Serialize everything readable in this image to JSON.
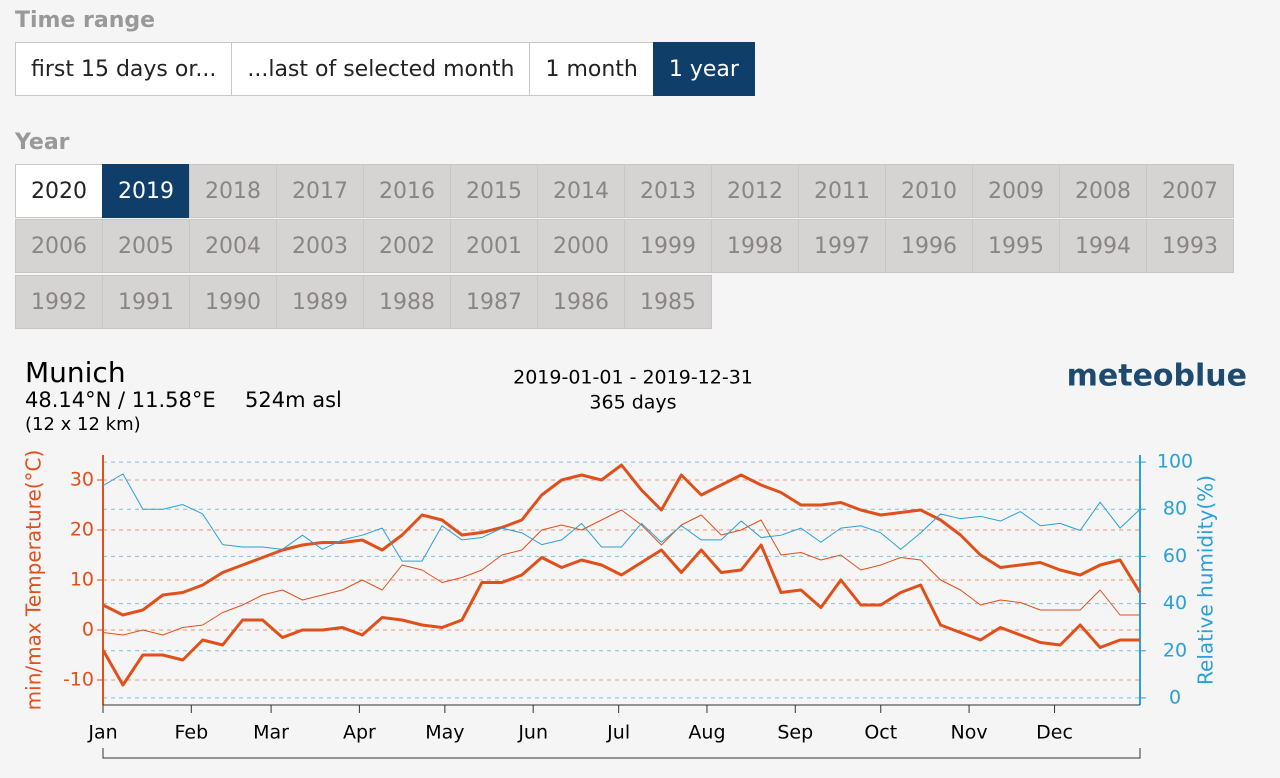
{
  "time_range": {
    "label": "Time range",
    "options": [
      "first 15 days or...",
      "...last of selected month",
      "1 month",
      "1 year"
    ],
    "selected": 3
  },
  "year": {
    "label": "Year",
    "rows": [
      [
        "2020",
        "2019",
        "2018",
        "2017",
        "2016",
        "2015",
        "2014",
        "2013",
        "2012",
        "2011",
        "2010",
        "2009",
        "2008",
        "2007"
      ],
      [
        "2006",
        "2005",
        "2004",
        "2003",
        "2002",
        "2001",
        "2000",
        "1999",
        "1998",
        "1997",
        "1996",
        "1995",
        "1994",
        "1993"
      ],
      [
        "1992",
        "1991",
        "1990",
        "1989",
        "1988",
        "1987",
        "1986",
        "1985"
      ]
    ],
    "selected": "2019",
    "available": [
      "2020",
      "2019"
    ]
  },
  "chart_data": {
    "type": "line",
    "location": "Munich",
    "coordinates": "48.14°N / 11.58°E",
    "elevation": "524m asl",
    "resolution": "(12 x 12 km)",
    "period": "2019-01-01 - 2019-12-31",
    "days": "365 days",
    "brand": "meteoblue",
    "y_label": "min/max Temperature(°C)",
    "y2_label": "Relative humidity(%)",
    "x": [
      0,
      7,
      14,
      21,
      28,
      35,
      42,
      49,
      56,
      63,
      70,
      77,
      84,
      91,
      98,
      105,
      112,
      119,
      126,
      133,
      140,
      147,
      154,
      161,
      168,
      175,
      182,
      189,
      196,
      203,
      210,
      217,
      224,
      231,
      238,
      245,
      252,
      259,
      266,
      273,
      280,
      287,
      294,
      301,
      308,
      315,
      322,
      329,
      336,
      343,
      350,
      357,
      364
    ],
    "xlim": [
      0,
      364
    ],
    "xticks": [
      {
        "value": 0,
        "label": "Jan"
      },
      {
        "value": 31,
        "label": "Feb"
      },
      {
        "value": 59,
        "label": "Mar"
      },
      {
        "value": 90,
        "label": "Apr"
      },
      {
        "value": 120,
        "label": "May"
      },
      {
        "value": 151,
        "label": "Jun"
      },
      {
        "value": 181,
        "label": "Jul"
      },
      {
        "value": 212,
        "label": "Aug"
      },
      {
        "value": 243,
        "label": "Sep"
      },
      {
        "value": 273,
        "label": "Oct"
      },
      {
        "value": 304,
        "label": "Nov"
      },
      {
        "value": 334,
        "label": "Dec"
      }
    ],
    "ylim": [
      -15,
      35
    ],
    "yticks": [
      -10,
      0,
      10,
      20,
      30
    ],
    "y2lim": [
      -3,
      103
    ],
    "y2ticks": [
      0,
      20,
      40,
      60,
      80,
      100
    ],
    "grid": true,
    "y_color": "#e0501a",
    "y2_color": "#2aa0d8",
    "series": [
      {
        "color": "#e0501a",
        "width": 3,
        "values": [
          5,
          3,
          4,
          7,
          7.5,
          9,
          11.5,
          13,
          14.5,
          16,
          17,
          17.5,
          17.5,
          18,
          16,
          19,
          23,
          22,
          19,
          19.5,
          20.5,
          22,
          27,
          30,
          31,
          30,
          33,
          28,
          24,
          31,
          27,
          29,
          31,
          29,
          27.5,
          25,
          25,
          25.5,
          24,
          23,
          23.5,
          24,
          22,
          19,
          15,
          12.5,
          13,
          13.5,
          12,
          11,
          13,
          14,
          7.5
        ]
      },
      {
        "color": "#e0501a",
        "width": 1,
        "values": [
          -0.5,
          -1,
          0,
          -1,
          0.5,
          1,
          3.5,
          5,
          7,
          8,
          6,
          7,
          8,
          10,
          8,
          13,
          12,
          9.5,
          10.5,
          12,
          15,
          16,
          20,
          21,
          20,
          22,
          24,
          21,
          17,
          21,
          23,
          19,
          20,
          22,
          15,
          15.5,
          14,
          15,
          12,
          13,
          14.5,
          14,
          10,
          8,
          5,
          6,
          5.5,
          4,
          4,
          4,
          8,
          3,
          3
        ]
      },
      {
        "color": "#e0501a",
        "width": 3,
        "values": [
          -4,
          -11,
          -5,
          -5,
          -6,
          -2,
          -3,
          2,
          2,
          -1.5,
          0,
          0,
          0.5,
          -1,
          2.5,
          2,
          1,
          0.5,
          2,
          9.5,
          9.5,
          11,
          14.5,
          12.5,
          14,
          13,
          11,
          13.5,
          16,
          11.5,
          16,
          11.5,
          12,
          17,
          7.5,
          8,
          4.5,
          10,
          5,
          5,
          7.5,
          9,
          1,
          -0.5,
          -2,
          0.5,
          -1,
          -2.5,
          -3,
          1,
          -3.5,
          -2,
          -2
        ]
      },
      {
        "color": "#2aa0d8",
        "width": 1,
        "axis": "y2",
        "values": [
          90,
          95,
          80,
          80,
          82,
          78,
          65,
          64,
          64,
          63,
          69,
          63,
          67,
          69,
          72,
          58,
          58,
          73,
          67,
          68,
          72,
          70,
          65,
          67,
          74,
          64,
          64,
          74,
          66,
          73,
          67,
          67,
          75,
          68,
          69,
          72,
          66,
          72,
          73,
          70,
          63,
          70,
          78,
          76,
          77,
          75,
          79,
          73,
          74,
          71,
          83,
          72,
          80
        ]
      }
    ]
  }
}
